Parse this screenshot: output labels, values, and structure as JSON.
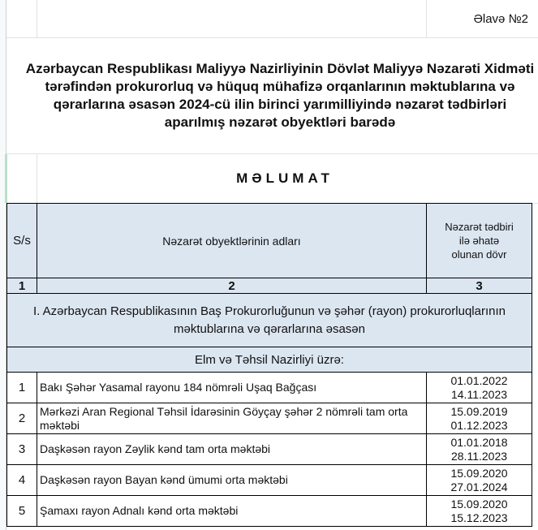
{
  "annex_label": "Əlavə №2",
  "title": "Azərbaycan Respublikası Maliyyə Nazirliyinin Dövlət Maliyyə Nəzarəti Xidməti tərəfindən prokurorluq və hüquq mühafizə orqanlarının məktublarına və qərarlarına əsasən 2024-cü ilin birinci yarımilliyində nəzarət tədbirləri aparılmış nəzarət obyektləri barədə",
  "heading": "MƏLUMAT",
  "table": {
    "headers": [
      "S/s",
      "Nəzarət obyektlərinin adları",
      "Nəzarət tədbiri ilə əhatə olunan dövr"
    ],
    "column_numbers": [
      "1",
      "2",
      "3"
    ],
    "section": "I. Azərbaycan Respublikasının Baş Prokurorluğunun və şəhər (rayon) prokurorluqlarının məktublarına və qərarlarına əsasən",
    "subsection": "Elm və Təhsil Nazirliyi üzrə:",
    "rows": [
      {
        "no": "1",
        "name": "Bakı Şəhər Yasamal rayonu 184 nömrəli Uşaq Bağçası",
        "from": "01.01.2022",
        "to": "14.11.2023"
      },
      {
        "no": "2",
        "name": "Mərkəzi Aran Regional Təhsil İdarəsinin Göyçay şəhər 2 nömrəli tam orta məktəbi",
        "from": "15.09.2019",
        "to": "01.12.2023"
      },
      {
        "no": "3",
        "name": "Daşkəsən rayon Zəylik kənd tam orta məktəbi",
        "from": "01.01.2018",
        "to": "28.11.2023"
      },
      {
        "no": "4",
        "name": "Daşkəsən rayon Bayan kənd ümumi orta məktəbi",
        "from": "15.09.2020",
        "to": "27.01.2024"
      },
      {
        "no": "5",
        "name": " Şamaxı rayon Adnalı kənd orta məktəbi",
        "from": "15.09.2020",
        "to": "15.12.2023"
      }
    ]
  },
  "colors": {
    "header_bg": "#dce6f1",
    "grid": "#e2e2e2",
    "border": "#000000"
  }
}
